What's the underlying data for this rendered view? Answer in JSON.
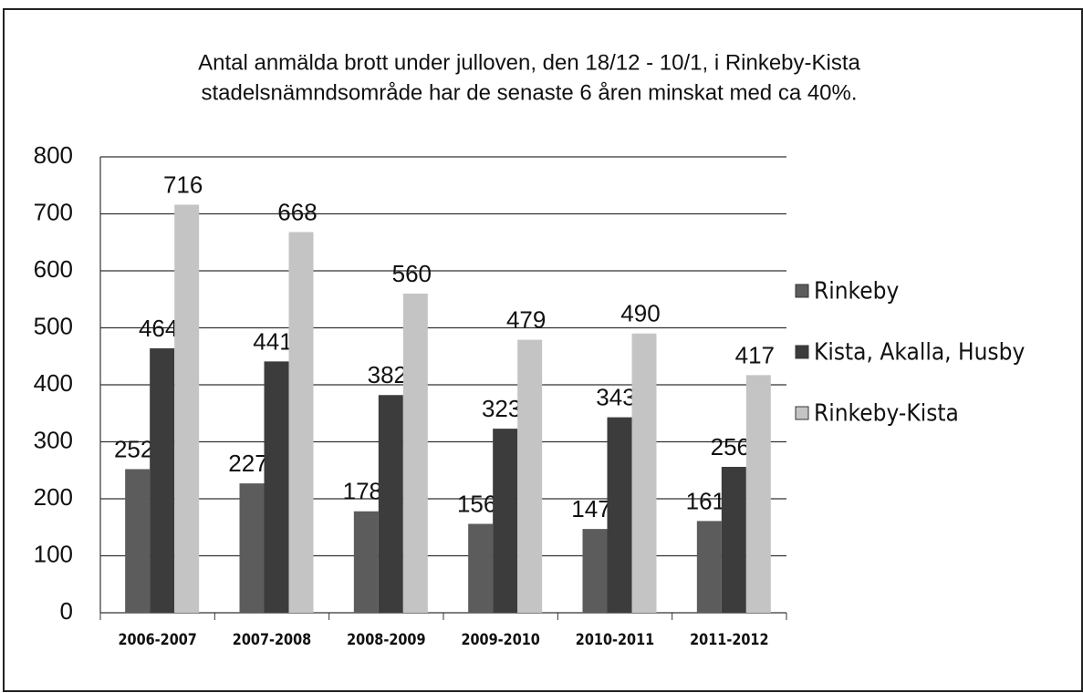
{
  "chart_data": {
    "type": "bar",
    "title": [
      "Antal anmälda brott under julloven, den 18/12 - 10/1, i Rinkeby-Kista",
      "stadelsnämndsområde har de senaste 6 åren minskat med ca 40%."
    ],
    "categories": [
      "2006-2007",
      "2007-2008",
      "2008-2009",
      "2009-2010",
      "2010-2011",
      "2011-2012"
    ],
    "series": [
      {
        "name": "Rinkeby",
        "color": "#5c5c5c",
        "values": [
          252,
          227,
          178,
          156,
          147,
          161
        ]
      },
      {
        "name": "Kista, Akalla, Husby",
        "color": "#3c3c3c",
        "values": [
          464,
          441,
          382,
          323,
          343,
          256
        ]
      },
      {
        "name": "Rinkeby-Kista",
        "color": "#c4c4c4",
        "values": [
          716,
          668,
          560,
          479,
          490,
          417
        ]
      }
    ],
    "ylim": [
      0,
      800
    ],
    "yticks": [
      0,
      100,
      200,
      300,
      400,
      500,
      600,
      700,
      800
    ],
    "grid": true,
    "legend": "right"
  }
}
